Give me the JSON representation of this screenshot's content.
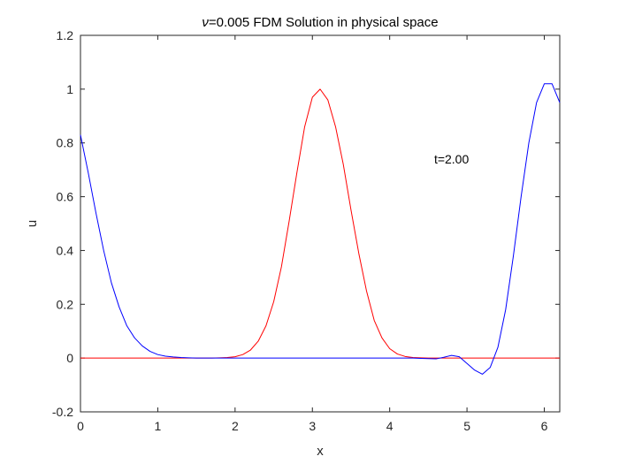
{
  "chart_data": {
    "type": "line",
    "title_symbol": "ν",
    "title_rest": "=0.005 FDM Solution in physical space",
    "xlabel": "x",
    "ylabel": "u",
    "xlim": [
      0,
      6.2
    ],
    "ylim": [
      -0.2,
      1.2
    ],
    "xticks": [
      0,
      1,
      2,
      3,
      4,
      5,
      6
    ],
    "yticks": [
      -0.2,
      0,
      0.2,
      0.4,
      0.6,
      0.8,
      1,
      1.2
    ],
    "xtick_labels": [
      "0",
      "1",
      "2",
      "3",
      "4",
      "5",
      "6"
    ],
    "ytick_labels": [
      "-0.2",
      "0",
      "0.2",
      "0.4",
      "0.6",
      "0.8",
      "1",
      "1.2"
    ],
    "grid": false,
    "box": true,
    "annotation": {
      "text": "t=2.00",
      "x": 4.8,
      "y": 0.74
    },
    "series": [
      {
        "color": "#ff0000",
        "x": [
          0,
          0.1,
          0.2,
          0.3,
          0.4,
          0.5,
          0.6,
          0.7,
          0.8,
          0.9,
          1.0,
          1.1,
          1.2,
          1.3,
          1.4,
          1.5,
          1.6,
          1.7,
          1.8,
          1.9,
          2.0,
          2.1,
          2.2,
          2.3,
          2.4,
          2.5,
          2.6,
          2.7,
          2.8,
          2.9,
          3.0,
          3.1,
          3.2,
          3.3,
          3.4,
          3.5,
          3.6,
          3.7,
          3.8,
          3.9,
          4.0,
          4.1,
          4.2,
          4.3,
          4.4,
          4.5,
          4.6,
          4.7,
          4.8,
          4.9,
          5.0,
          5.1,
          5.2,
          5.3,
          5.4,
          5.5,
          5.6,
          5.7,
          5.8,
          5.9,
          6.0,
          6.1,
          6.2
        ],
        "y": [
          0,
          0,
          0,
          0,
          0,
          0,
          0,
          0,
          0,
          0,
          0,
          0,
          0,
          0,
          0,
          0,
          0,
          0,
          0.001,
          0.002,
          0.005,
          0.013,
          0.03,
          0.063,
          0.12,
          0.21,
          0.34,
          0.51,
          0.69,
          0.86,
          0.97,
          1.0,
          0.96,
          0.86,
          0.72,
          0.55,
          0.39,
          0.25,
          0.14,
          0.075,
          0.035,
          0.015,
          0.006,
          0.002,
          0.001,
          0,
          0,
          0,
          0,
          0,
          0,
          0,
          0,
          0,
          0,
          0,
          0,
          0,
          0,
          0,
          0,
          0,
          0
        ]
      },
      {
        "color": "#0000ff",
        "x": [
          0,
          0.1,
          0.2,
          0.3,
          0.4,
          0.5,
          0.6,
          0.7,
          0.8,
          0.9,
          1.0,
          1.1,
          1.2,
          1.3,
          1.4,
          1.5,
          1.6,
          1.7,
          1.8,
          1.9,
          2.0,
          2.1,
          2.2,
          2.3,
          2.4,
          2.5,
          2.6,
          2.7,
          2.8,
          2.9,
          3.0,
          3.1,
          3.2,
          3.3,
          3.4,
          3.5,
          3.6,
          3.7,
          3.8,
          3.9,
          4.0,
          4.1,
          4.2,
          4.3,
          4.4,
          4.5,
          4.6,
          4.7,
          4.8,
          4.9,
          5.0,
          5.1,
          5.2,
          5.3,
          5.4,
          5.5,
          5.6,
          5.7,
          5.8,
          5.9,
          6.0,
          6.1,
          6.2
        ],
        "y": [
          0.83,
          0.69,
          0.54,
          0.4,
          0.28,
          0.19,
          0.12,
          0.075,
          0.045,
          0.025,
          0.013,
          0.007,
          0.004,
          0.002,
          0.001,
          0,
          0,
          0,
          0,
          0,
          0,
          0,
          0,
          0,
          0,
          0,
          0,
          0,
          0,
          0,
          0,
          0,
          0,
          0,
          0,
          0,
          0,
          0,
          0,
          0,
          0,
          0,
          0,
          0,
          -0.001,
          -0.002,
          -0.003,
          0.003,
          0.01,
          0.005,
          -0.02,
          -0.045,
          -0.06,
          -0.035,
          0.04,
          0.18,
          0.38,
          0.6,
          0.8,
          0.95,
          1.02,
          1.02,
          0.95
        ]
      }
    ]
  }
}
